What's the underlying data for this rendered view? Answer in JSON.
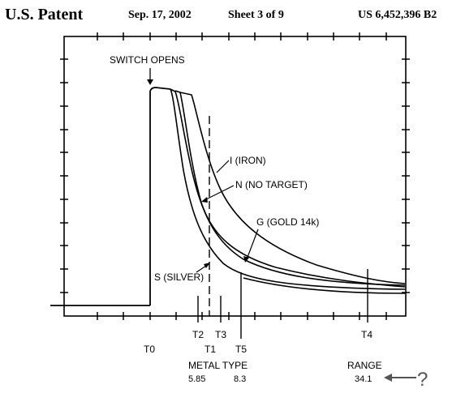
{
  "header": {
    "publisher": "U.S. Patent",
    "date": "Sep. 17, 2002",
    "sheet": "Sheet 3 of 9",
    "patent_number": "US 6,452,396 B2"
  },
  "figure": {
    "annotation_switch": "SWITCH OPENS",
    "curves": {
      "iron": "I (IRON)",
      "no_target": "N (NO TARGET)",
      "gold": "G (GOLD 14k)",
      "silver": "S (SILVER)"
    },
    "time_markers": {
      "t0": "T0",
      "t1": "T1",
      "t2": "T2",
      "t3": "T3",
      "t4": "T4",
      "t5": "T5"
    },
    "metal_type": {
      "label": "METAL TYPE",
      "value_1": "5.85",
      "value_2": "8.3"
    },
    "range": {
      "label": "RANGE",
      "value": "34.1",
      "query": "?"
    }
  }
}
